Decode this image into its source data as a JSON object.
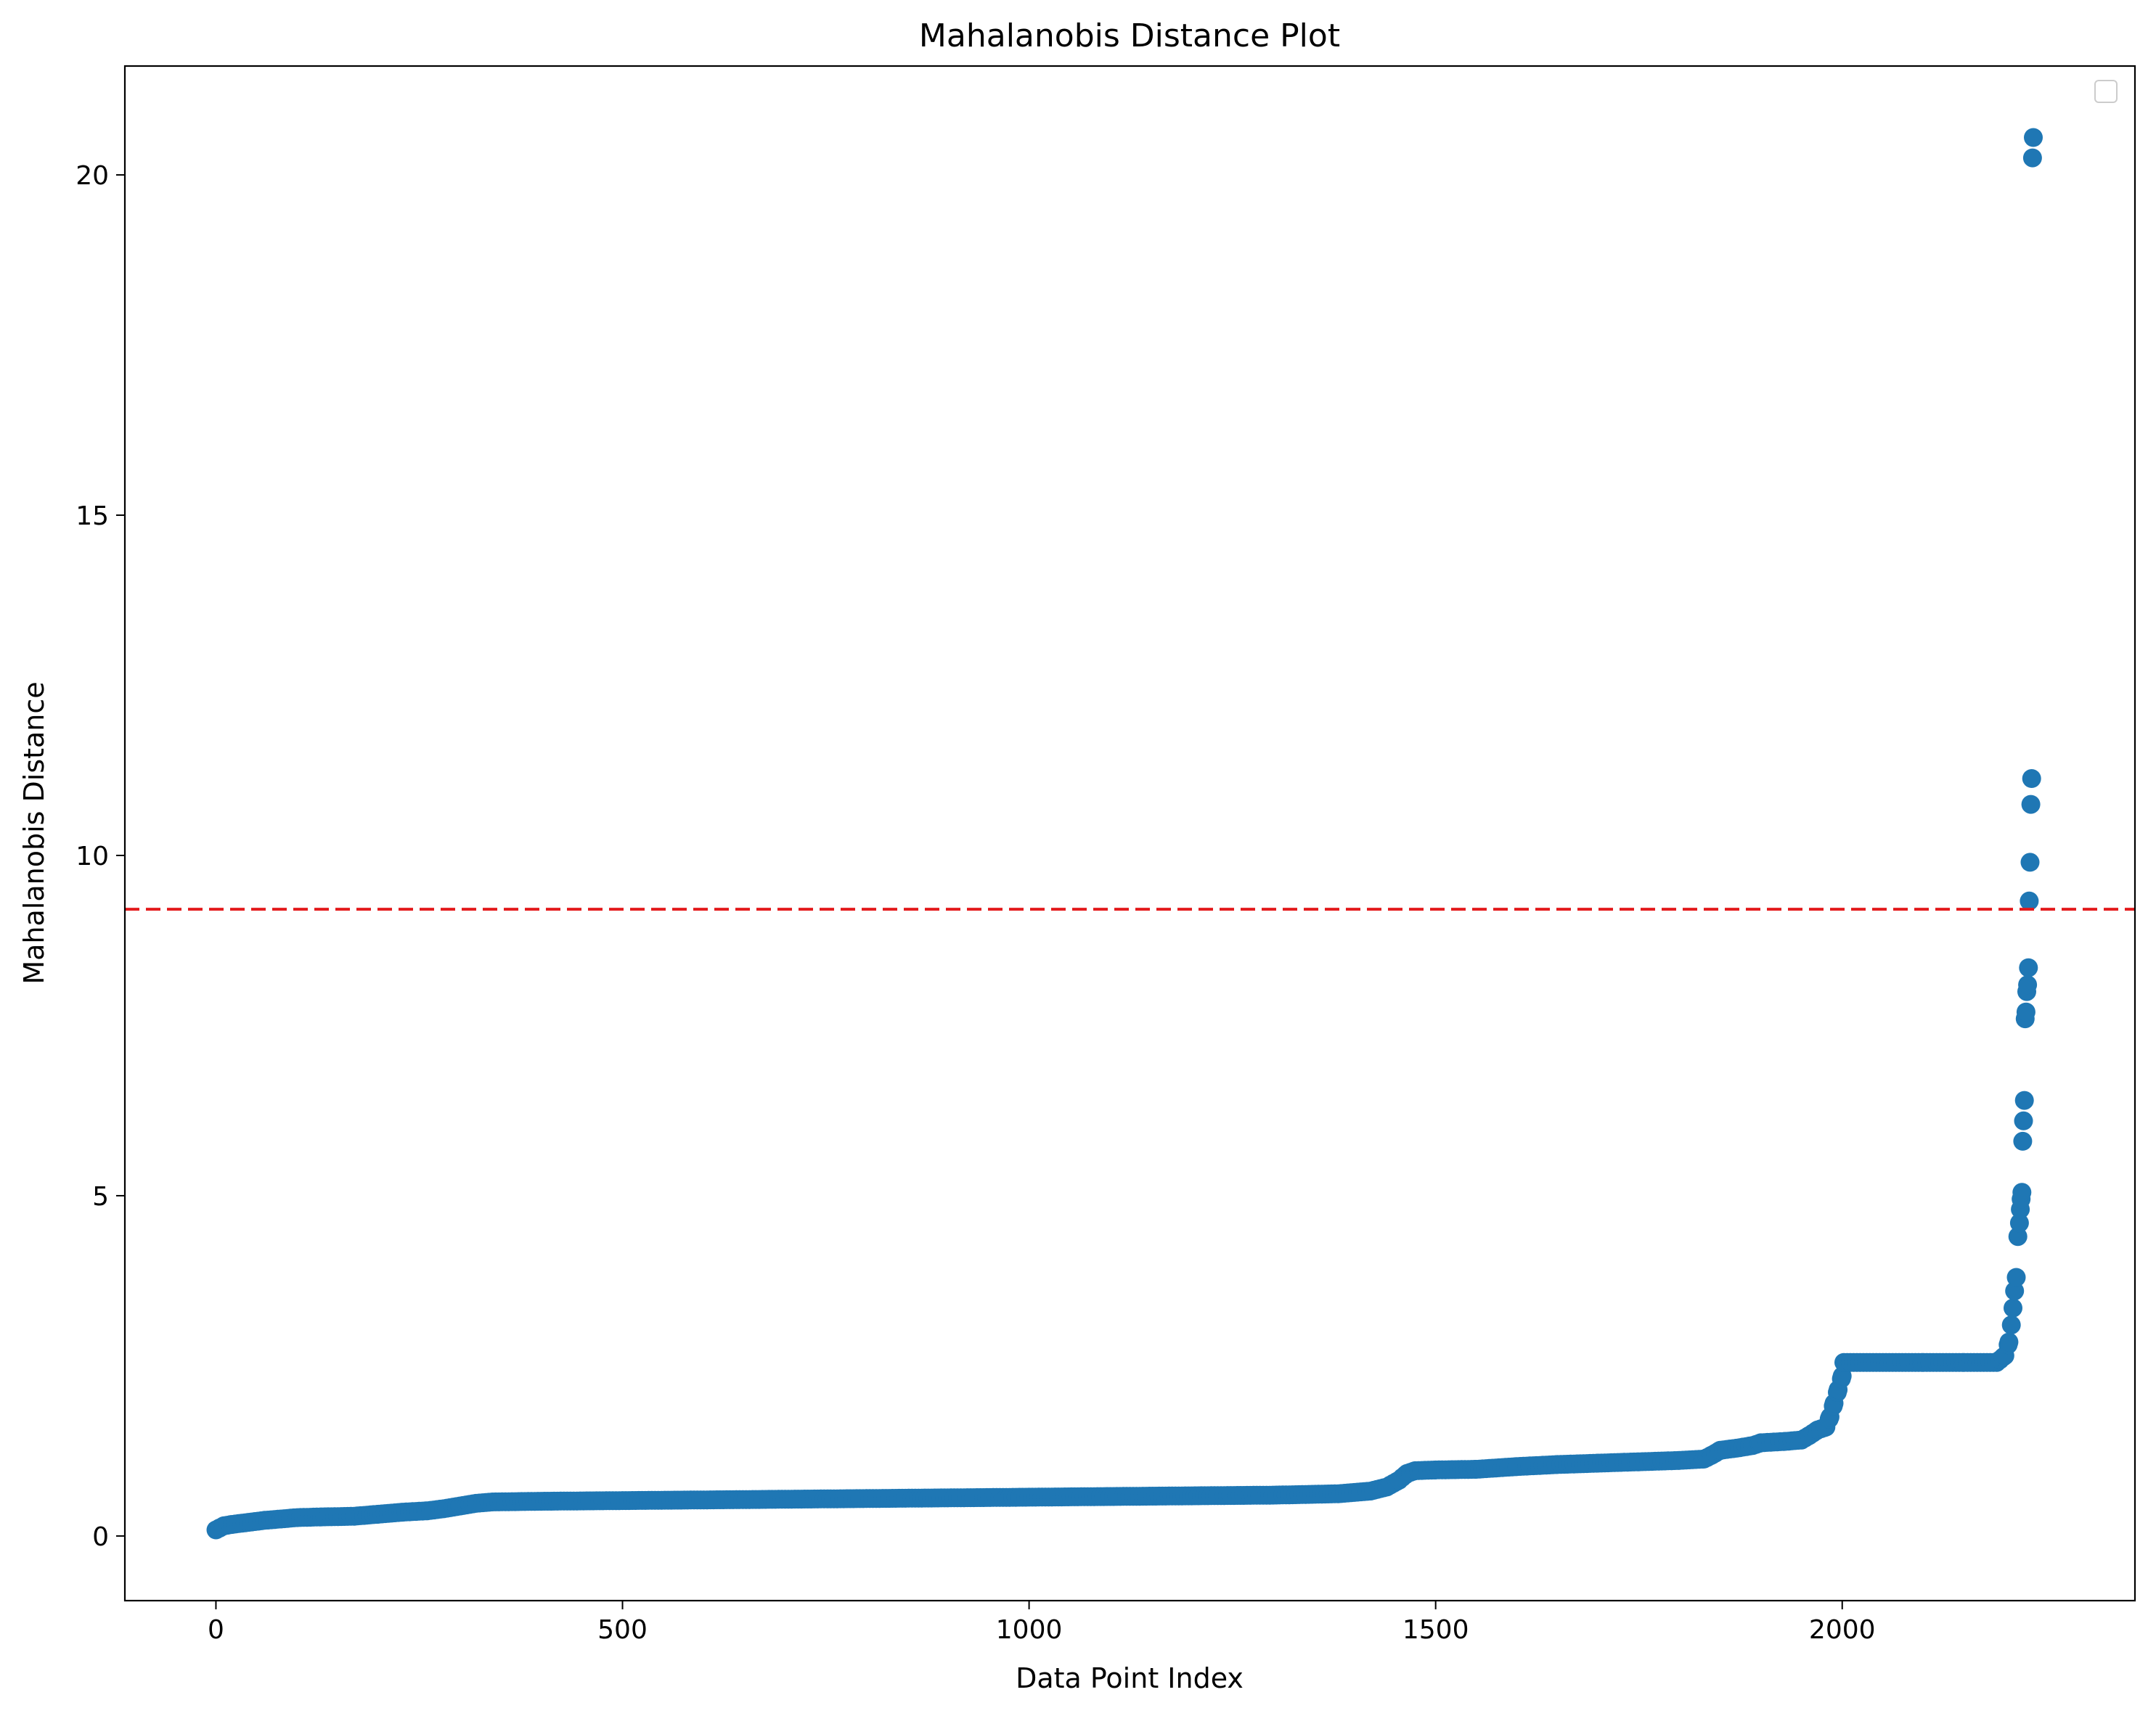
{
  "chart_data": {
    "type": "scatter",
    "title": "Mahalanobis Distance Plot",
    "xlabel": "Data Point Index",
    "ylabel": "Mahalanobis Distance",
    "xlim": [
      -112,
      2360
    ],
    "ylim": [
      -0.95,
      21.6
    ],
    "xticks": [
      0,
      500,
      1000,
      1500,
      2000
    ],
    "yticks": [
      0,
      5,
      10,
      15,
      20
    ],
    "grid": false,
    "legend": {
      "placement": "upper right",
      "entries": []
    },
    "threshold": {
      "y": 9.21,
      "color": "#e31a1c",
      "style": "dashed"
    },
    "marker_color": "#1f77b4",
    "series": [
      {
        "points": [
          [
            0,
            0.09
          ],
          [
            5,
            0.12
          ],
          [
            10,
            0.15
          ],
          [
            20,
            0.17
          ],
          [
            40,
            0.2
          ],
          [
            60,
            0.23
          ],
          [
            80,
            0.25
          ],
          [
            100,
            0.27
          ],
          [
            130,
            0.28
          ],
          [
            170,
            0.29
          ],
          [
            200,
            0.32
          ],
          [
            230,
            0.35
          ],
          [
            260,
            0.37
          ],
          [
            280,
            0.4
          ],
          [
            300,
            0.44
          ],
          [
            320,
            0.48
          ],
          [
            340,
            0.5
          ],
          [
            400,
            0.51
          ],
          [
            500,
            0.52
          ],
          [
            600,
            0.53
          ],
          [
            700,
            0.54
          ],
          [
            800,
            0.55
          ],
          [
            900,
            0.56
          ],
          [
            1000,
            0.57
          ],
          [
            1100,
            0.58
          ],
          [
            1200,
            0.59
          ],
          [
            1300,
            0.6
          ],
          [
            1380,
            0.62
          ],
          [
            1420,
            0.66
          ],
          [
            1440,
            0.72
          ],
          [
            1455,
            0.82
          ],
          [
            1465,
            0.92
          ],
          [
            1475,
            0.96
          ],
          [
            1500,
            0.97
          ],
          [
            1550,
            0.98
          ],
          [
            1600,
            1.02
          ],
          [
            1650,
            1.05
          ],
          [
            1700,
            1.07
          ],
          [
            1750,
            1.09
          ],
          [
            1800,
            1.11
          ],
          [
            1830,
            1.13
          ],
          [
            1840,
            1.19
          ],
          [
            1850,
            1.26
          ],
          [
            1870,
            1.29
          ],
          [
            1890,
            1.33
          ],
          [
            1900,
            1.37
          ],
          [
            1930,
            1.39
          ],
          [
            1950,
            1.41
          ],
          [
            1960,
            1.48
          ],
          [
            1970,
            1.56
          ],
          [
            1980,
            1.6
          ],
          [
            1985,
            1.75
          ],
          [
            1990,
            1.95
          ],
          [
            1995,
            2.15
          ],
          [
            2000,
            2.35
          ],
          [
            2002,
            2.55
          ],
          [
            2050,
            2.55
          ],
          [
            2100,
            2.55
          ],
          [
            2150,
            2.55
          ],
          [
            2190,
            2.55
          ],
          [
            2200,
            2.65
          ],
          [
            2205,
            2.85
          ],
          [
            2208,
            3.1
          ],
          [
            2210,
            3.35
          ],
          [
            2212,
            3.6
          ],
          [
            2214,
            3.8
          ],
          [
            2216,
            4.4
          ],
          [
            2218,
            4.6
          ],
          [
            2219,
            4.8
          ],
          [
            2220,
            4.95
          ],
          [
            2221,
            5.05
          ],
          [
            2222,
            5.8
          ],
          [
            2223,
            6.1
          ],
          [
            2224,
            6.4
          ],
          [
            2225,
            7.6
          ],
          [
            2226,
            7.7
          ],
          [
            2227,
            8.0
          ],
          [
            2228,
            8.1
          ],
          [
            2229,
            8.35
          ],
          [
            2230,
            9.33
          ],
          [
            2231,
            9.9
          ],
          [
            2232,
            10.75
          ],
          [
            2233,
            11.13
          ],
          [
            2234,
            20.25
          ],
          [
            2235,
            20.55
          ]
        ]
      }
    ]
  }
}
